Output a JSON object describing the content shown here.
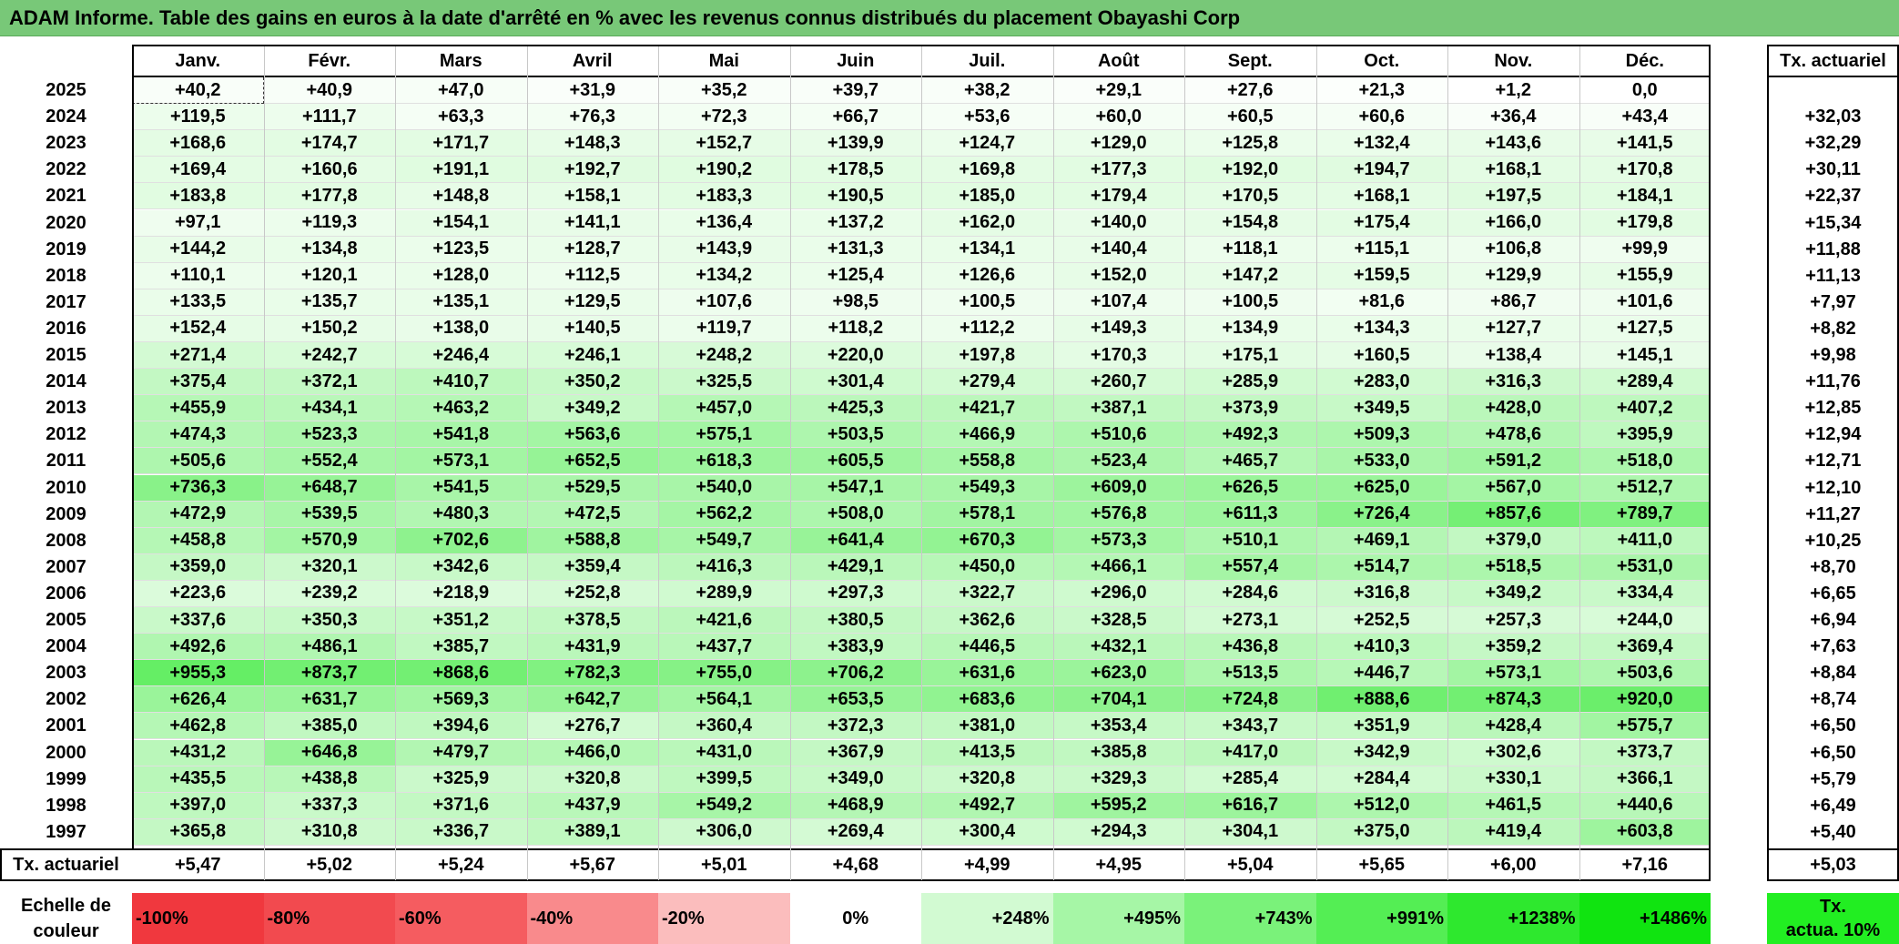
{
  "title": "ADAM Informe. Table des gains en euros à la date d'arrêté en % avec les revenus connus distribués du placement Obayashi Corp",
  "months": [
    "Janv.",
    "Févr.",
    "Mars",
    "Avril",
    "Mai",
    "Juin",
    "Juil.",
    "Août",
    "Sept.",
    "Oct.",
    "Nov.",
    "Déc."
  ],
  "tx_header": "Tx. actuariel",
  "rows": [
    {
      "year": "2025",
      "values": [
        "+40,2",
        "+40,9",
        "+47,0",
        "+31,9",
        "+35,2",
        "+39,7",
        "+38,2",
        "+29,1",
        "+27,6",
        "+21,3",
        "+1,2",
        "0,0"
      ],
      "tx": ""
    },
    {
      "year": "2024",
      "values": [
        "+119,5",
        "+111,7",
        "+63,3",
        "+76,3",
        "+72,3",
        "+66,7",
        "+53,6",
        "+60,0",
        "+60,5",
        "+60,6",
        "+36,4",
        "+43,4"
      ],
      "tx": "+32,03"
    },
    {
      "year": "2023",
      "values": [
        "+168,6",
        "+174,7",
        "+171,7",
        "+148,3",
        "+152,7",
        "+139,9",
        "+124,7",
        "+129,0",
        "+125,8",
        "+132,4",
        "+143,6",
        "+141,5"
      ],
      "tx": "+32,29"
    },
    {
      "year": "2022",
      "values": [
        "+169,4",
        "+160,6",
        "+191,1",
        "+192,7",
        "+190,2",
        "+178,5",
        "+169,8",
        "+177,3",
        "+192,0",
        "+194,7",
        "+168,1",
        "+170,8"
      ],
      "tx": "+30,11"
    },
    {
      "year": "2021",
      "values": [
        "+183,8",
        "+177,8",
        "+148,8",
        "+158,1",
        "+183,3",
        "+190,5",
        "+185,0",
        "+179,4",
        "+170,5",
        "+168,1",
        "+197,5",
        "+184,1"
      ],
      "tx": "+22,37"
    },
    {
      "year": "2020",
      "values": [
        "+97,1",
        "+119,3",
        "+154,1",
        "+141,1",
        "+136,4",
        "+137,2",
        "+162,0",
        "+140,0",
        "+154,8",
        "+175,4",
        "+166,0",
        "+179,8"
      ],
      "tx": "+15,34"
    },
    {
      "year": "2019",
      "values": [
        "+144,2",
        "+134,8",
        "+123,5",
        "+128,7",
        "+143,9",
        "+131,3",
        "+134,1",
        "+140,4",
        "+118,1",
        "+115,1",
        "+106,8",
        "+99,9"
      ],
      "tx": "+11,88"
    },
    {
      "year": "2018",
      "values": [
        "+110,1",
        "+120,1",
        "+128,0",
        "+112,5",
        "+134,2",
        "+125,4",
        "+126,6",
        "+152,0",
        "+147,2",
        "+159,5",
        "+129,9",
        "+155,9"
      ],
      "tx": "+11,13"
    },
    {
      "year": "2017",
      "values": [
        "+133,5",
        "+135,7",
        "+135,1",
        "+129,5",
        "+107,6",
        "+98,5",
        "+100,5",
        "+107,4",
        "+100,5",
        "+81,6",
        "+86,7",
        "+101,6"
      ],
      "tx": "+7,97"
    },
    {
      "year": "2016",
      "values": [
        "+152,4",
        "+150,2",
        "+138,0",
        "+140,5",
        "+119,7",
        "+118,2",
        "+112,2",
        "+149,3",
        "+134,9",
        "+134,3",
        "+127,7",
        "+127,5"
      ],
      "tx": "+8,82"
    },
    {
      "year": "2015",
      "values": [
        "+271,4",
        "+242,7",
        "+246,4",
        "+246,1",
        "+248,2",
        "+220,0",
        "+197,8",
        "+170,3",
        "+175,1",
        "+160,5",
        "+138,4",
        "+145,1"
      ],
      "tx": "+9,98"
    },
    {
      "year": "2014",
      "values": [
        "+375,4",
        "+372,1",
        "+410,7",
        "+350,2",
        "+325,5",
        "+301,4",
        "+279,4",
        "+260,7",
        "+285,9",
        "+283,0",
        "+316,3",
        "+289,4"
      ],
      "tx": "+11,76"
    },
    {
      "year": "2013",
      "values": [
        "+455,9",
        "+434,1",
        "+463,2",
        "+349,2",
        "+457,0",
        "+425,3",
        "+421,7",
        "+387,1",
        "+373,9",
        "+349,5",
        "+428,0",
        "+407,2"
      ],
      "tx": "+12,85"
    },
    {
      "year": "2012",
      "values": [
        "+474,3",
        "+523,3",
        "+541,8",
        "+563,6",
        "+575,1",
        "+503,5",
        "+466,9",
        "+510,6",
        "+492,3",
        "+509,3",
        "+478,6",
        "+395,9"
      ],
      "tx": "+12,94"
    },
    {
      "year": "2011",
      "values": [
        "+505,6",
        "+552,4",
        "+573,1",
        "+652,5",
        "+618,3",
        "+605,5",
        "+558,8",
        "+523,4",
        "+465,7",
        "+533,0",
        "+591,2",
        "+518,0"
      ],
      "tx": "+12,71"
    },
    {
      "year": "2010",
      "values": [
        "+736,3",
        "+648,7",
        "+541,5",
        "+529,5",
        "+540,0",
        "+547,1",
        "+549,3",
        "+609,0",
        "+626,5",
        "+625,0",
        "+567,0",
        "+512,7"
      ],
      "tx": "+12,10"
    },
    {
      "year": "2009",
      "values": [
        "+472,9",
        "+539,5",
        "+480,3",
        "+472,5",
        "+562,2",
        "+508,0",
        "+578,1",
        "+576,8",
        "+611,3",
        "+726,4",
        "+857,6",
        "+789,7"
      ],
      "tx": "+11,27"
    },
    {
      "year": "2008",
      "values": [
        "+458,8",
        "+570,9",
        "+702,6",
        "+588,8",
        "+549,7",
        "+641,4",
        "+670,3",
        "+573,3",
        "+510,1",
        "+469,1",
        "+379,0",
        "+411,0"
      ],
      "tx": "+10,25"
    },
    {
      "year": "2007",
      "values": [
        "+359,0",
        "+320,1",
        "+342,6",
        "+359,4",
        "+416,3",
        "+429,1",
        "+450,0",
        "+466,1",
        "+557,4",
        "+514,7",
        "+518,5",
        "+531,0"
      ],
      "tx": "+8,70"
    },
    {
      "year": "2006",
      "values": [
        "+223,6",
        "+239,2",
        "+218,9",
        "+252,8",
        "+289,9",
        "+297,3",
        "+322,7",
        "+296,0",
        "+284,6",
        "+316,8",
        "+349,2",
        "+334,4"
      ],
      "tx": "+6,65"
    },
    {
      "year": "2005",
      "values": [
        "+337,6",
        "+350,3",
        "+351,2",
        "+378,5",
        "+421,6",
        "+380,5",
        "+362,6",
        "+328,5",
        "+273,1",
        "+252,5",
        "+257,3",
        "+244,0"
      ],
      "tx": "+6,94"
    },
    {
      "year": "2004",
      "values": [
        "+492,6",
        "+486,1",
        "+385,7",
        "+431,9",
        "+437,7",
        "+383,9",
        "+446,5",
        "+432,1",
        "+436,8",
        "+410,3",
        "+359,2",
        "+369,4"
      ],
      "tx": "+7,63"
    },
    {
      "year": "2003",
      "values": [
        "+955,3",
        "+873,7",
        "+868,6",
        "+782,3",
        "+755,0",
        "+706,2",
        "+631,6",
        "+623,0",
        "+513,5",
        "+446,7",
        "+573,1",
        "+503,6"
      ],
      "tx": "+8,84"
    },
    {
      "year": "2002",
      "values": [
        "+626,4",
        "+631,7",
        "+569,3",
        "+642,7",
        "+564,1",
        "+653,5",
        "+683,6",
        "+704,1",
        "+724,8",
        "+888,6",
        "+874,3",
        "+920,0"
      ],
      "tx": "+8,74"
    },
    {
      "year": "2001",
      "values": [
        "+462,8",
        "+385,0",
        "+394,6",
        "+276,7",
        "+360,4",
        "+372,3",
        "+381,0",
        "+353,4",
        "+343,7",
        "+351,9",
        "+428,4",
        "+575,7"
      ],
      "tx": "+6,50"
    },
    {
      "year": "2000",
      "values": [
        "+431,2",
        "+646,8",
        "+479,7",
        "+466,0",
        "+431,0",
        "+367,9",
        "+413,5",
        "+385,8",
        "+417,0",
        "+342,9",
        "+302,6",
        "+373,7"
      ],
      "tx": "+6,50"
    },
    {
      "year": "1999",
      "values": [
        "+435,5",
        "+438,8",
        "+325,9",
        "+320,8",
        "+399,5",
        "+349,0",
        "+320,8",
        "+329,3",
        "+285,4",
        "+284,4",
        "+330,1",
        "+366,1"
      ],
      "tx": "+5,79"
    },
    {
      "year": "1998",
      "values": [
        "+397,0",
        "+337,3",
        "+371,6",
        "+437,9",
        "+549,2",
        "+468,9",
        "+492,7",
        "+595,2",
        "+616,7",
        "+512,0",
        "+461,5",
        "+440,6"
      ],
      "tx": "+6,49"
    },
    {
      "year": "1997",
      "values": [
        "+365,8",
        "+310,8",
        "+336,7",
        "+389,1",
        "+306,0",
        "+269,4",
        "+300,4",
        "+294,3",
        "+304,1",
        "+375,0",
        "+419,4",
        "+603,8"
      ],
      "tx": "+5,40"
    }
  ],
  "footer": {
    "label": "Tx. actuariel",
    "values": [
      "+5,47",
      "+5,02",
      "+5,24",
      "+5,67",
      "+5,01",
      "+4,68",
      "+4,99",
      "+4,95",
      "+5,04",
      "+5,65",
      "+6,00",
      "+7,16"
    ],
    "tx": "+5,03"
  },
  "scale": {
    "label_line1": "Echelle de",
    "label_line2": "couleur",
    "items": [
      {
        "text": "-100%",
        "color": "#f0383e",
        "align": "left"
      },
      {
        "text": "-80%",
        "color": "#f24a4f",
        "align": "left"
      },
      {
        "text": "-60%",
        "color": "#f55c60",
        "align": "left"
      },
      {
        "text": "-40%",
        "color": "#f98a8c",
        "align": "left"
      },
      {
        "text": "-20%",
        "color": "#fbbdbd",
        "align": "left"
      },
      {
        "text": "0%",
        "color": "#ffffff",
        "align": "center"
      },
      {
        "text": "+248%",
        "color": "#d2fad2",
        "align": "right"
      },
      {
        "text": "+495%",
        "color": "#a6f6a6",
        "align": "right"
      },
      {
        "text": "+743%",
        "color": "#7af27a",
        "align": "right"
      },
      {
        "text": "+991%",
        "color": "#54ee54",
        "align": "right"
      },
      {
        "text": "+1238%",
        "color": "#2ee82e",
        "align": "right"
      },
      {
        "text": "+1486%",
        "color": "#10e410",
        "align": "right"
      }
    ],
    "actua_line1": "Tx.",
    "actua_line2": "actua. 10%",
    "actua_color": "#22ee22"
  }
}
